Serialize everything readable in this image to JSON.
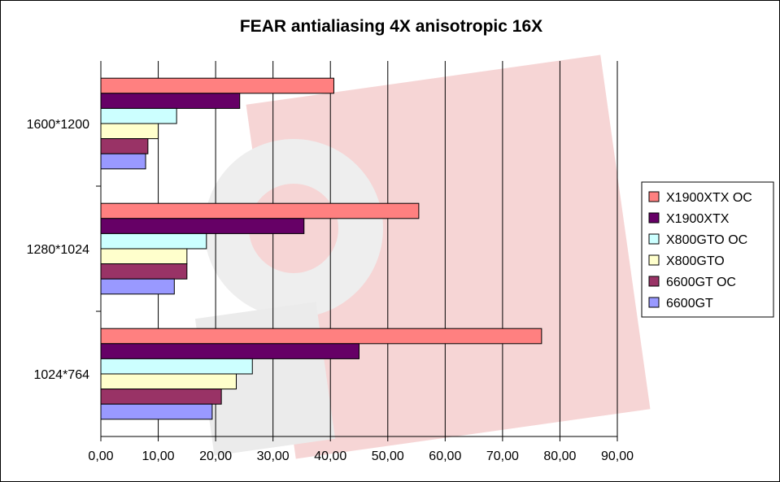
{
  "chart_data": {
    "type": "bar",
    "orientation": "horizontal",
    "title": "FEAR antialiasing 4X anisotropic 16X",
    "xlabel": "",
    "ylabel": "",
    "categories": [
      "1600*1200",
      "1280*1024",
      "1024*764"
    ],
    "series": [
      {
        "name": "X1900XTX OC",
        "color": "#ff8080",
        "values": [
          40.6,
          55.4,
          76.8
        ]
      },
      {
        "name": "X1900XTX",
        "color": "#660066",
        "values": [
          24.2,
          35.4,
          45.0
        ]
      },
      {
        "name": "X800GTO OC",
        "color": "#ccffff",
        "values": [
          13.2,
          18.4,
          26.4
        ]
      },
      {
        "name": "X800GTO",
        "color": "#ffffcc",
        "values": [
          10.0,
          15.0,
          23.6
        ]
      },
      {
        "name": "6600GT OC",
        "color": "#993366",
        "values": [
          8.2,
          15.0,
          21.0
        ]
      },
      {
        "name": "6600GT",
        "color": "#9999ff",
        "values": [
          7.8,
          12.8,
          19.4
        ]
      }
    ],
    "xlim": [
      0,
      90
    ],
    "xticks": [
      "0,00",
      "10,00",
      "20,00",
      "30,00",
      "40,00",
      "50,00",
      "60,00",
      "70,00",
      "80,00",
      "90,00"
    ],
    "grid": true,
    "legend_position": "right"
  }
}
